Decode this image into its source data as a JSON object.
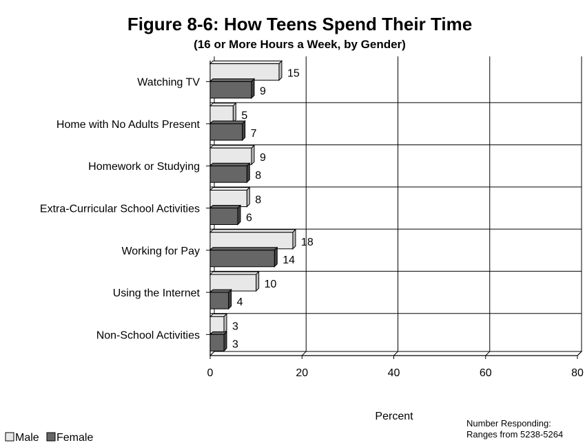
{
  "chart_data": {
    "type": "bar",
    "orientation": "horizontal",
    "title": "Figure 8-6: How Teens Spend Their Time",
    "subtitle": "(16 or More Hours a Week, by Gender)",
    "xlabel": "Percent",
    "ylabel": "",
    "xlim": [
      0,
      80
    ],
    "xticks": [
      0,
      20,
      40,
      60,
      80
    ],
    "grid": true,
    "legend_position": "bottom-left",
    "categories": [
      "Watching TV",
      "Home with No Adults Present",
      "Homework or Studying",
      "Extra-Curricular School Activities",
      "Working for Pay",
      "Using the Internet",
      "Non-School Activities"
    ],
    "series": [
      {
        "name": "Male",
        "values": [
          15,
          5,
          9,
          8,
          18,
          10,
          3
        ],
        "color": "#e8e8e8"
      },
      {
        "name": "Female",
        "values": [
          9,
          7,
          8,
          6,
          14,
          4,
          3
        ],
        "color": "#666666"
      }
    ],
    "note": [
      "Number Responding:",
      "Ranges from 5238-5264"
    ]
  }
}
